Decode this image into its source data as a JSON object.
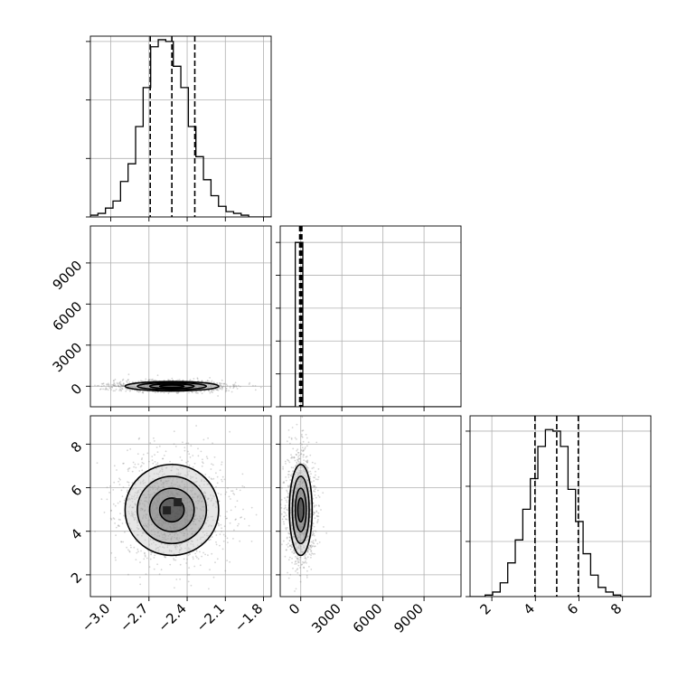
{
  "chart_data": {
    "type": "corner",
    "grid": true,
    "colors": {
      "line": "#000000",
      "grid": "#b0b0b0",
      "scatter": "#888888",
      "fill_dark": "#222222",
      "fill_mid": "#777777",
      "fill_light": "#cccccc"
    },
    "params": [
      {
        "ticks": [
          -3.0,
          -2.7,
          -2.4,
          -2.1,
          -1.8
        ],
        "tick_labels": [
          "−3.0",
          "−2.7",
          "−2.4",
          "−2.1",
          "−1.8"
        ],
        "range": [
          -3.16,
          -1.74
        ],
        "quantiles": [
          -2.69,
          -2.52,
          -2.34
        ],
        "hist": {
          "bin_start": -3.16,
          "bin_width": 0.0592,
          "counts": [
            1,
            2,
            5,
            9,
            20,
            30,
            51,
            73,
            96,
            100,
            99,
            85,
            73,
            51,
            34,
            21,
            12,
            6,
            3,
            2,
            1,
            0,
            0,
            0
          ],
          "ylim": [
            0,
            102
          ],
          "ticks": [
            0,
            33,
            66,
            99
          ]
        }
      },
      {
        "ticks": [
          0,
          3000,
          6000,
          9000
        ],
        "tick_labels": [
          "0",
          "3000",
          "6000",
          "9000"
        ],
        "range": [
          -1500,
          11700
        ],
        "quantiles": [
          -80,
          0,
          80
        ],
        "hist": {
          "bin_start": -1500,
          "bin_width": 550,
          "counts": [
            0,
            0,
            100,
            0,
            0,
            0,
            0,
            0,
            0,
            0,
            0,
            0,
            0,
            0,
            0,
            0,
            0,
            0,
            0,
            0,
            0,
            0,
            0,
            0
          ],
          "ylim": [
            0,
            110
          ],
          "ticks": [
            0,
            20,
            40,
            60,
            80,
            100
          ]
        }
      },
      {
        "ticks": [
          2,
          4,
          6,
          8
        ],
        "tick_labels": [
          "2",
          "4",
          "6",
          "8"
        ],
        "range": [
          1.0,
          9.3
        ],
        "quantiles": [
          3.98,
          4.98,
          5.97
        ],
        "hist": {
          "bin_start": 1.0,
          "bin_width": 0.346,
          "counts": [
            0,
            0,
            1,
            3,
            9,
            22,
            37,
            57,
            77,
            98,
            109,
            108,
            98,
            70,
            49,
            28,
            14,
            6,
            3,
            1,
            0,
            0,
            0,
            0
          ],
          "ylim": [
            0,
            118
          ],
          "ticks": [
            0,
            36,
            72,
            108
          ]
        }
      }
    ]
  }
}
